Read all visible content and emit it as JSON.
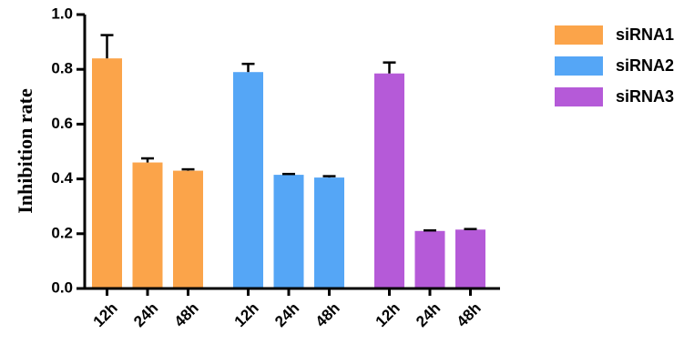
{
  "chart_data": {
    "type": "bar",
    "ylabel": "Inhibition rate",
    "xlabel": "",
    "ylim": [
      0,
      1.0
    ],
    "yticks": [
      "0.0",
      "0.2",
      "0.4",
      "0.6",
      "0.8",
      "1.0"
    ],
    "categories": [
      "12h",
      "24h",
      "48h"
    ],
    "legend_position": "right",
    "error_bars": true,
    "series": [
      {
        "name": "siRNA1",
        "color": "#FBA44A",
        "values": [
          0.84,
          0.46,
          0.43
        ],
        "errors": [
          0.085,
          0.015,
          0.005
        ]
      },
      {
        "name": "siRNA2",
        "color": "#55A6F6",
        "values": [
          0.79,
          0.415,
          0.405
        ],
        "errors": [
          0.03,
          0.003,
          0.005
        ]
      },
      {
        "name": "siRNA3",
        "color": "#B55AD8",
        "values": [
          0.785,
          0.21,
          0.215
        ],
        "errors": [
          0.04,
          0.002,
          0.002
        ]
      }
    ]
  }
}
